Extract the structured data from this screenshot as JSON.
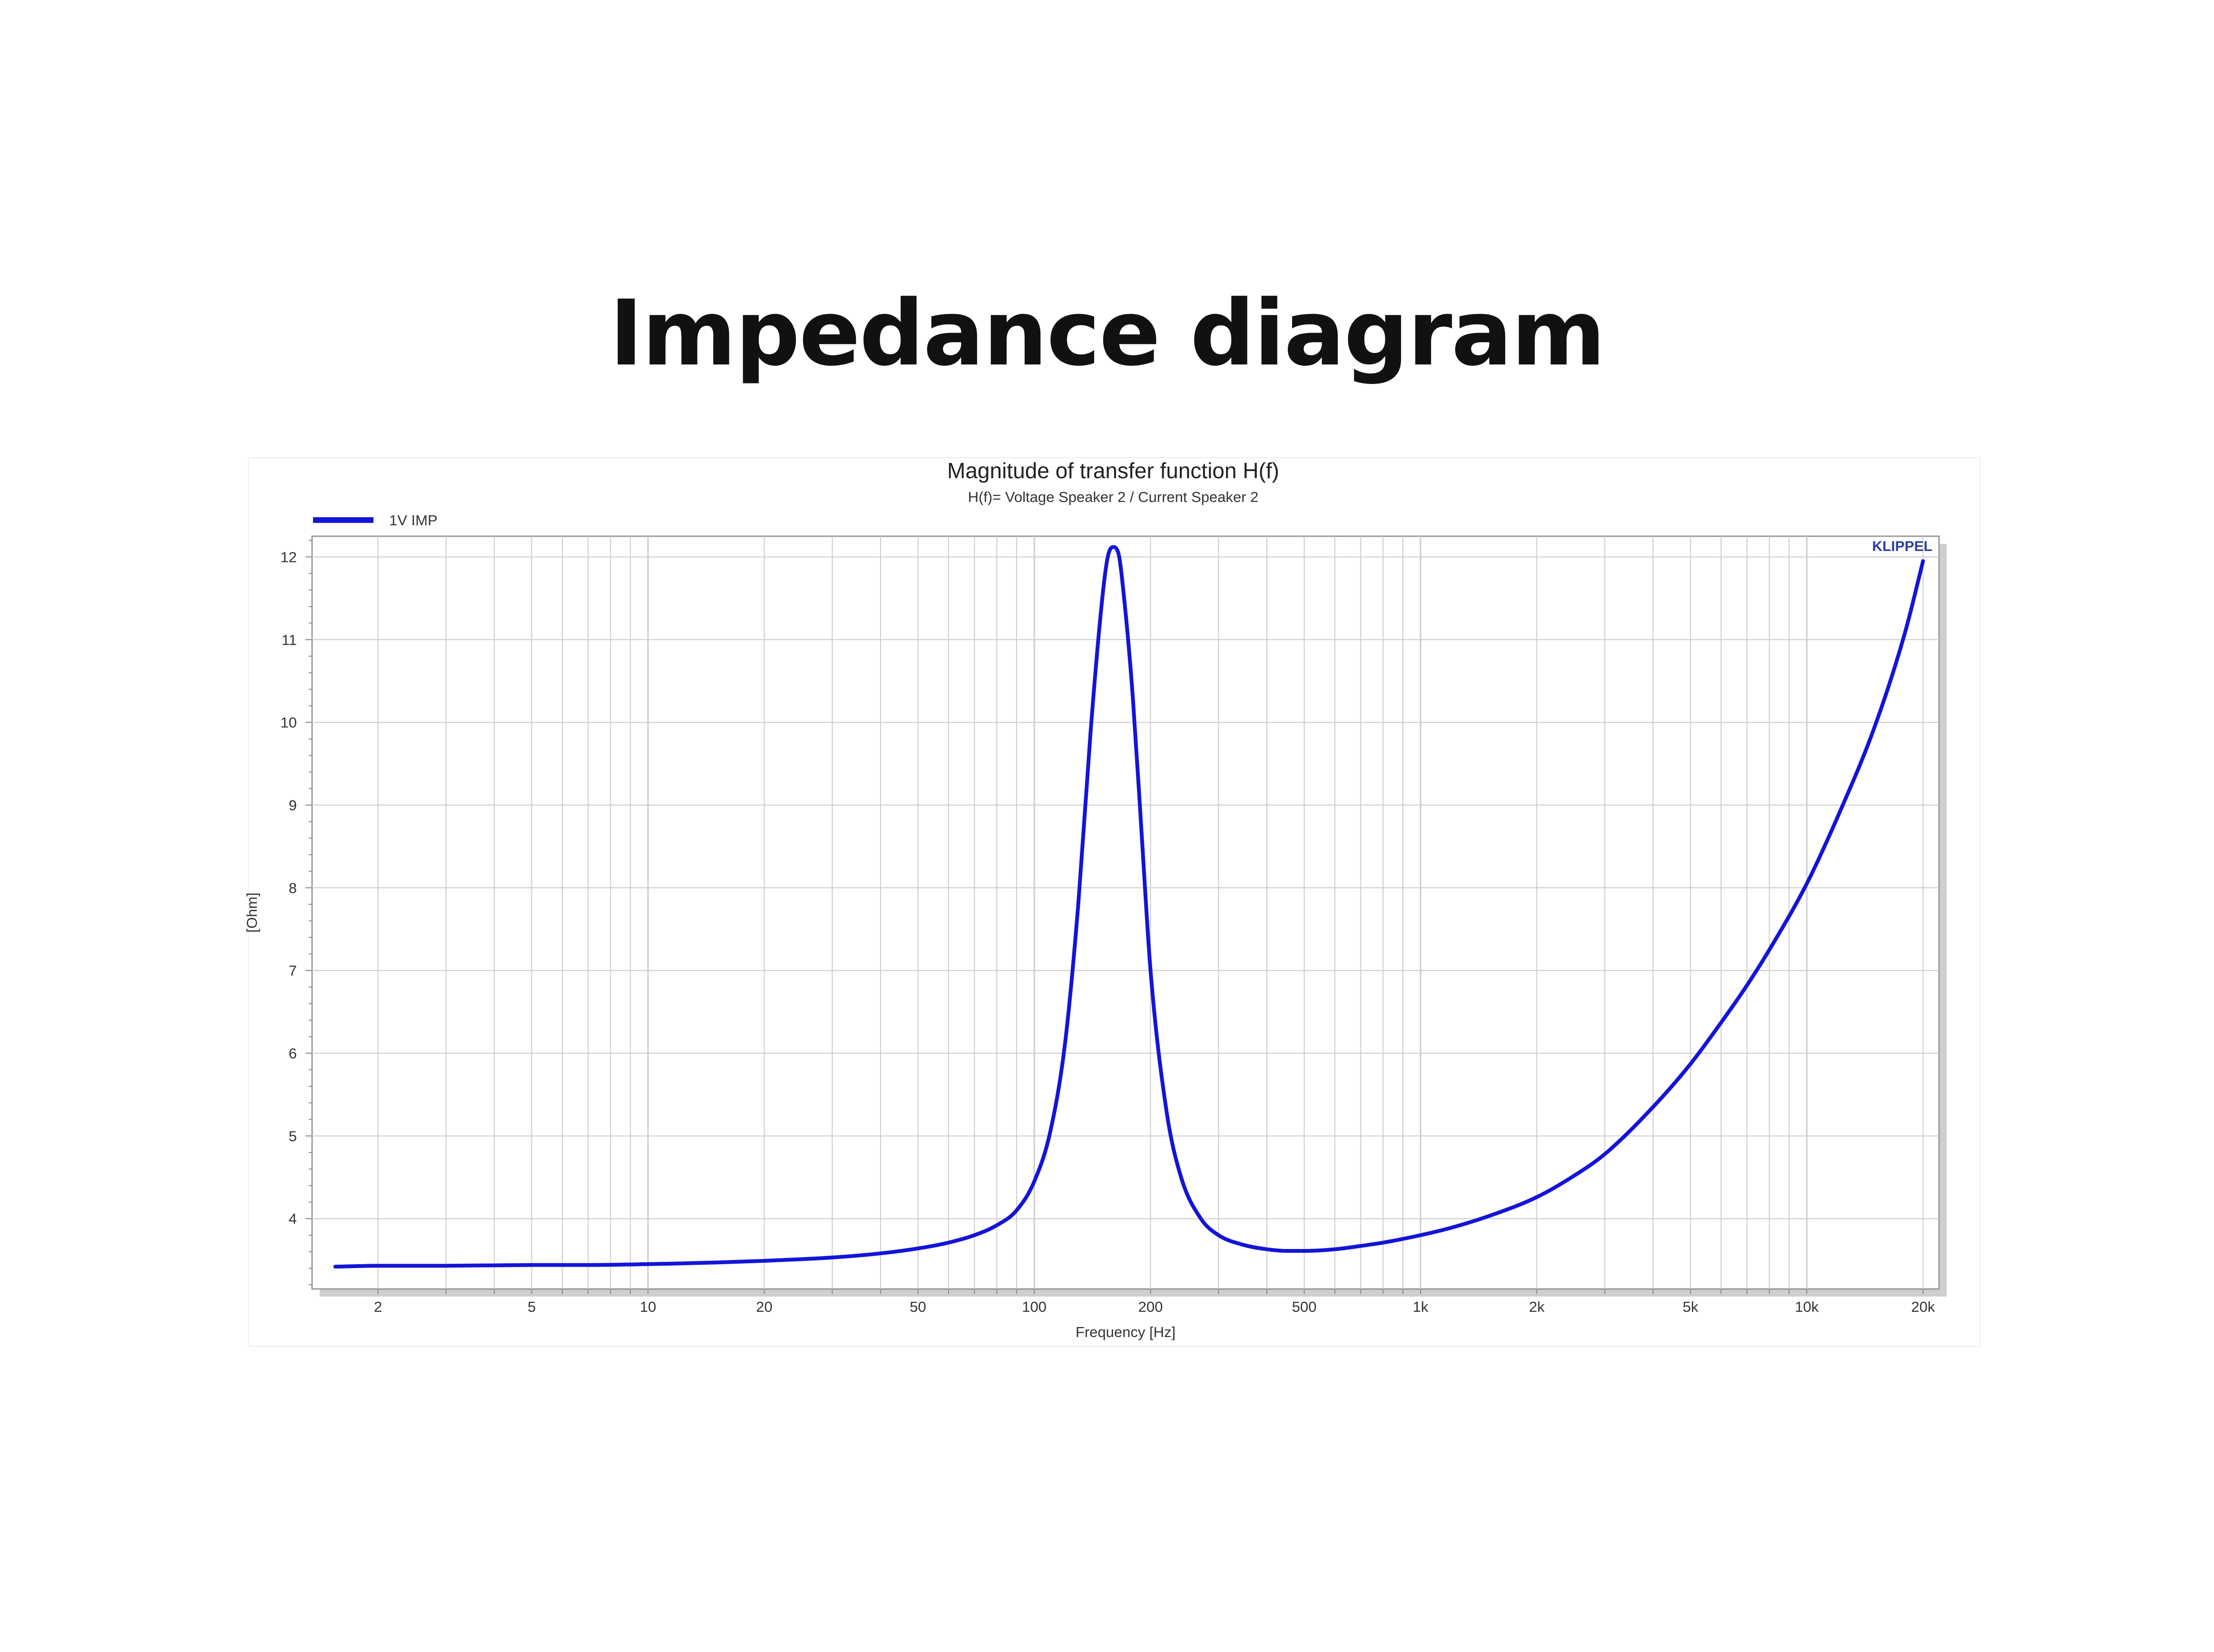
{
  "page": {
    "heading": "Impedance diagram"
  },
  "colors": {
    "curve": "#1414d8",
    "grid": "#cccccc",
    "frame": "#9a9a9a",
    "shadow": "#cfcfcf",
    "brand": "#2b3fa0"
  },
  "chart_data": {
    "type": "line",
    "title": "Magnitude of transfer function H(f)",
    "subtitle": "H(f)= Voltage Speaker 2 / Current Speaker 2",
    "xlabel": "Frequency [Hz]",
    "ylabel": "[Ohm]",
    "xscale": "log",
    "xlim": [
      1.35,
      22000
    ],
    "ylim": [
      3.15,
      12.25
    ],
    "xticks": [
      {
        "value": 2,
        "label": "2"
      },
      {
        "value": 5,
        "label": "5"
      },
      {
        "value": 10,
        "label": "10"
      },
      {
        "value": 20,
        "label": "20"
      },
      {
        "value": 50,
        "label": "50"
      },
      {
        "value": 100,
        "label": "100"
      },
      {
        "value": 200,
        "label": "200"
      },
      {
        "value": 500,
        "label": "500"
      },
      {
        "value": 1000,
        "label": "1k"
      },
      {
        "value": 2000,
        "label": "2k"
      },
      {
        "value": 5000,
        "label": "5k"
      },
      {
        "value": 10000,
        "label": "10k"
      },
      {
        "value": 20000,
        "label": "20k"
      }
    ],
    "yticks": [
      4,
      5,
      6,
      7,
      8,
      9,
      10,
      11,
      12
    ],
    "grid": true,
    "legend_position": "top-left",
    "brand": "KLIPPEL",
    "series": [
      {
        "name": "1V IMP",
        "x": [
          1.55,
          2,
          3,
          5,
          7,
          10,
          15,
          20,
          25,
          30,
          40,
          50,
          60,
          70,
          80,
          90,
          100,
          110,
          120,
          130,
          140,
          150,
          155,
          160,
          165,
          170,
          180,
          190,
          200,
          220,
          240,
          270,
          300,
          350,
          400,
          450,
          500,
          600,
          700,
          800,
          1000,
          1200,
          1500,
          2000,
          2500,
          3000,
          4000,
          5000,
          6000,
          7000,
          8000,
          10000,
          12000,
          15000,
          18000,
          20000
        ],
        "y": [
          3.42,
          3.43,
          3.43,
          3.44,
          3.44,
          3.45,
          3.47,
          3.49,
          3.51,
          3.53,
          3.58,
          3.64,
          3.71,
          3.8,
          3.92,
          4.1,
          4.45,
          5.05,
          6.1,
          7.8,
          9.9,
          11.5,
          12.0,
          12.12,
          12.05,
          11.6,
          10.3,
          8.6,
          7.0,
          5.3,
          4.5,
          4.0,
          3.8,
          3.68,
          3.63,
          3.61,
          3.61,
          3.63,
          3.67,
          3.71,
          3.8,
          3.89,
          4.03,
          4.26,
          4.52,
          4.78,
          5.35,
          5.87,
          6.37,
          6.82,
          7.25,
          8.05,
          8.85,
          9.95,
          11.1,
          11.95
        ]
      }
    ]
  }
}
